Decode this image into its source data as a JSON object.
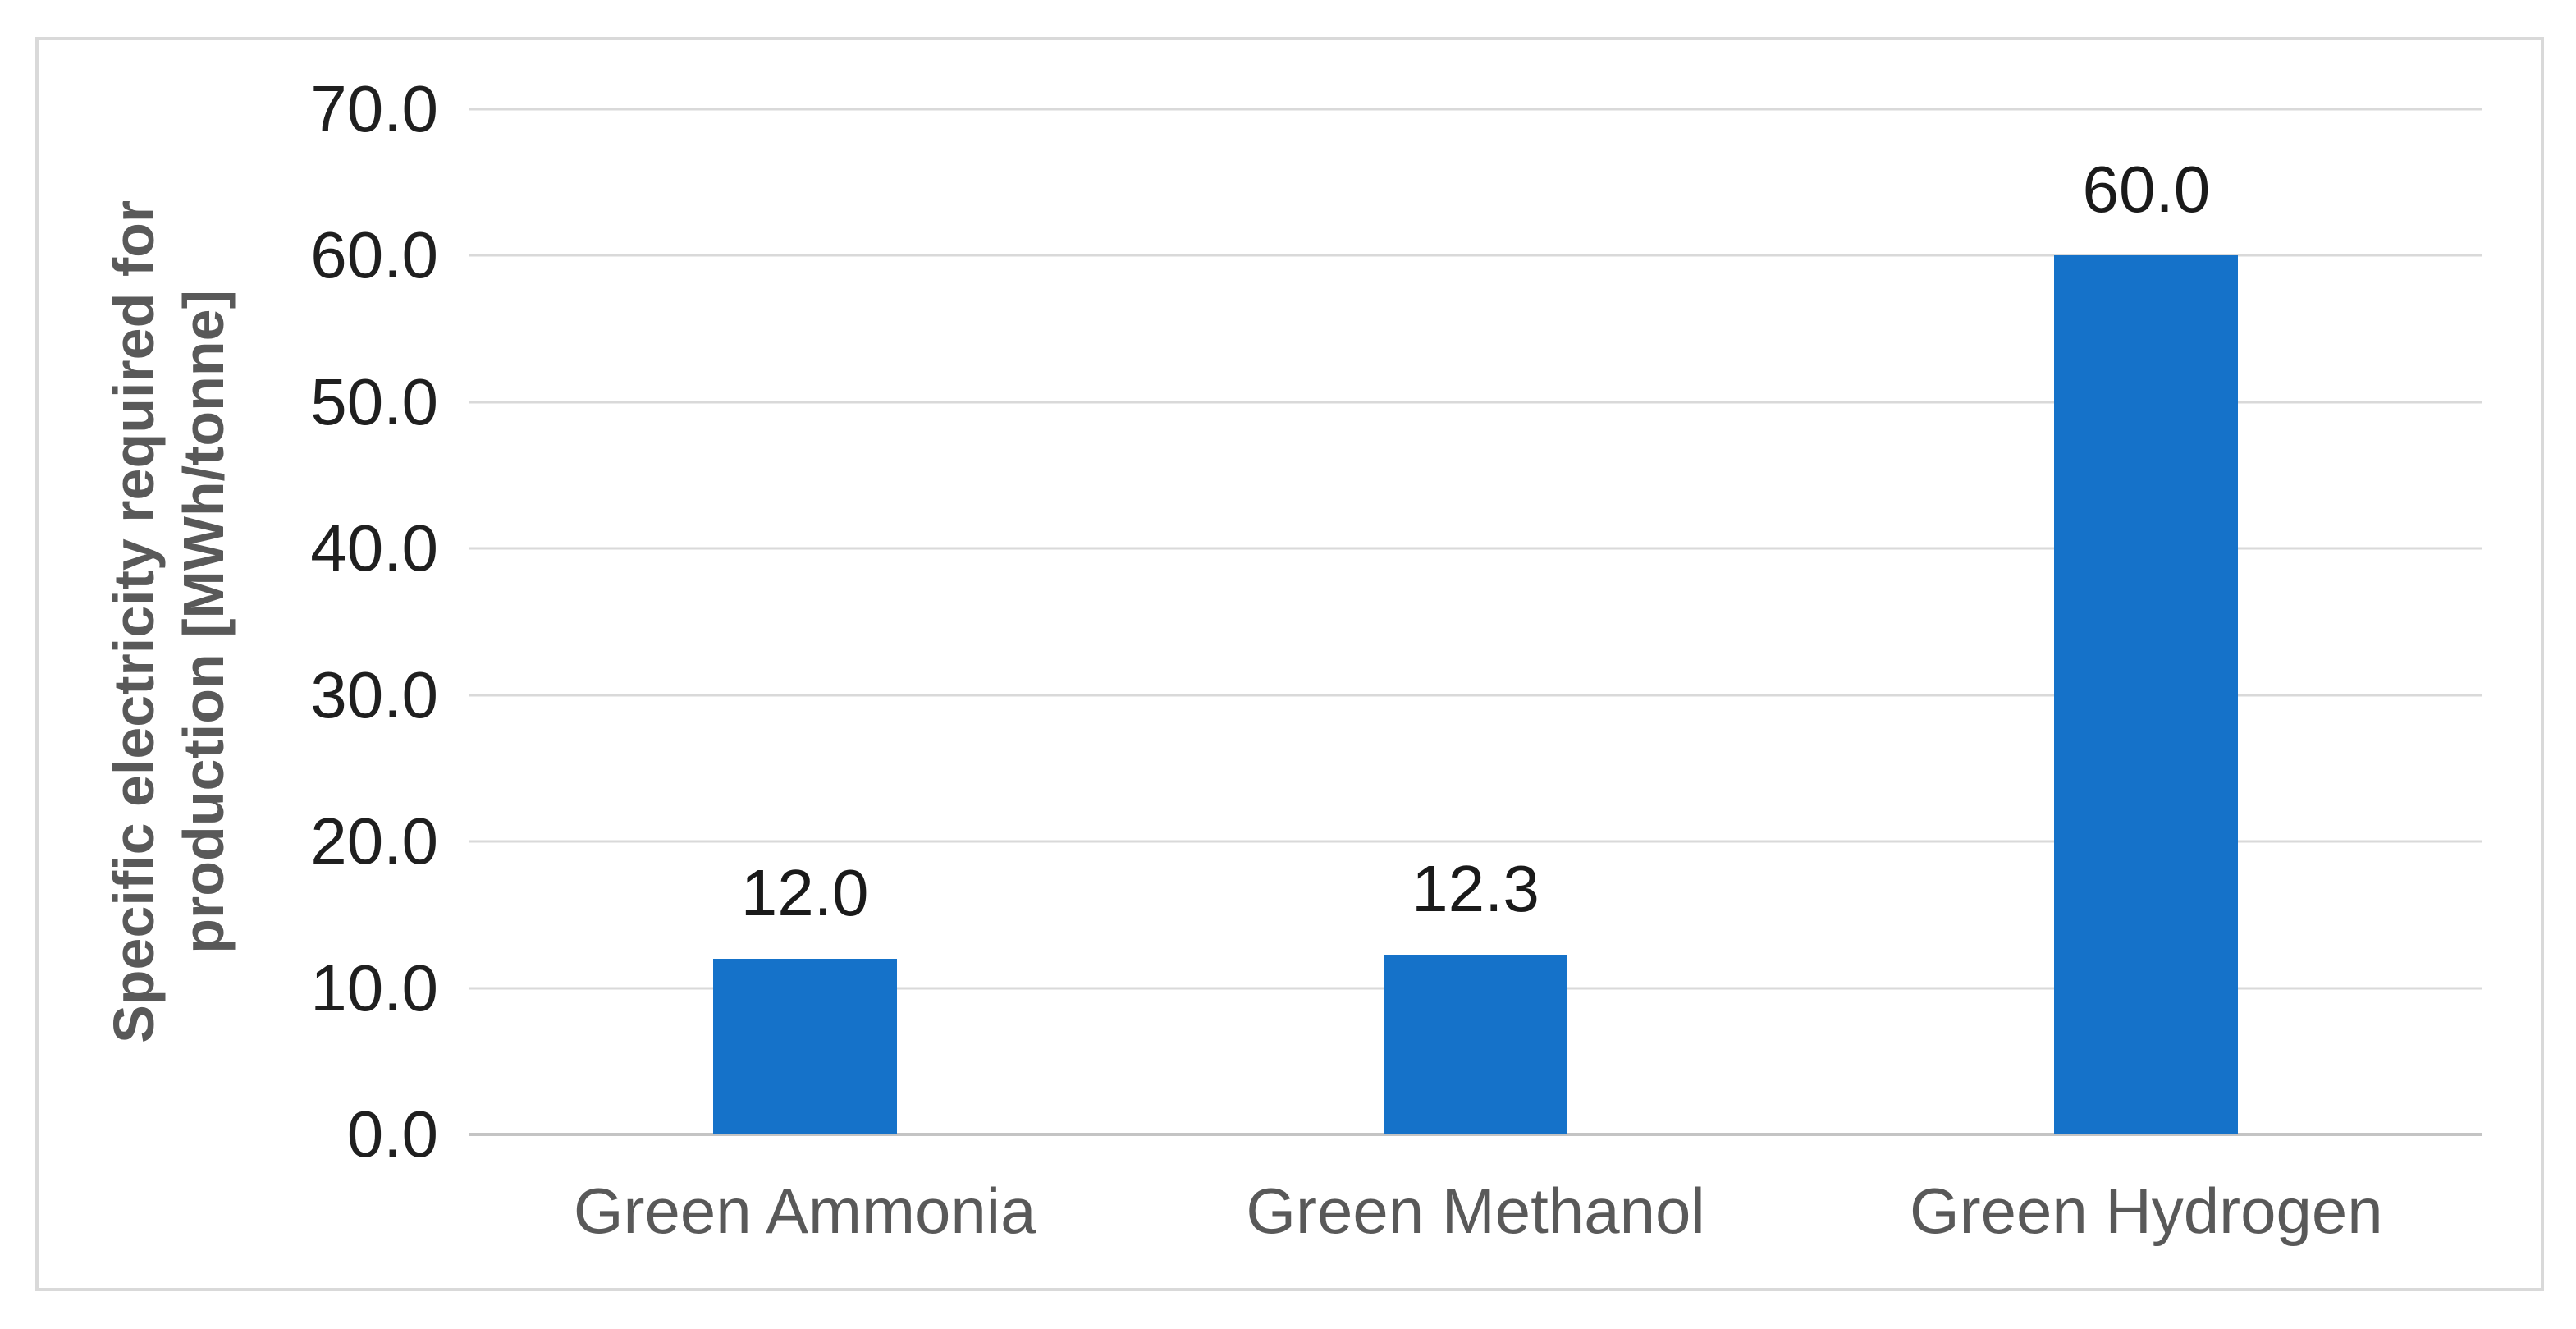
{
  "chart_data": {
    "type": "bar",
    "title": "",
    "xlabel": "",
    "ylabel": "Specific electricity required for production [MWh/tonne]",
    "ylabel_lines": [
      "Specific electricity required for",
      "production [MWh/tonne]"
    ],
    "categories": [
      "Green Ammonia",
      "Green Methanol",
      "Green Hydrogen"
    ],
    "values": [
      12.0,
      12.3,
      60.0
    ],
    "data_labels": [
      "12.0",
      "12.3",
      "60.0"
    ],
    "yticks": [
      "70.0",
      "60.0",
      "50.0",
      "40.0",
      "30.0",
      "20.0",
      "10.0",
      "0.0"
    ],
    "ylim": [
      0,
      70
    ],
    "ytick_step": 10,
    "grid": true,
    "legend_position": "none",
    "colors": {
      "bar": "#1572C9",
      "gridline": "#D9D9D9",
      "axis_line": "#C4C4C4",
      "frame_border": "#D9D9D9",
      "tick_text": "#1F1F1F",
      "value_label_text": "#1A1A1A",
      "category_text": "#595959",
      "ylabel_text": "#595959",
      "background": "#FFFFFF"
    }
  }
}
